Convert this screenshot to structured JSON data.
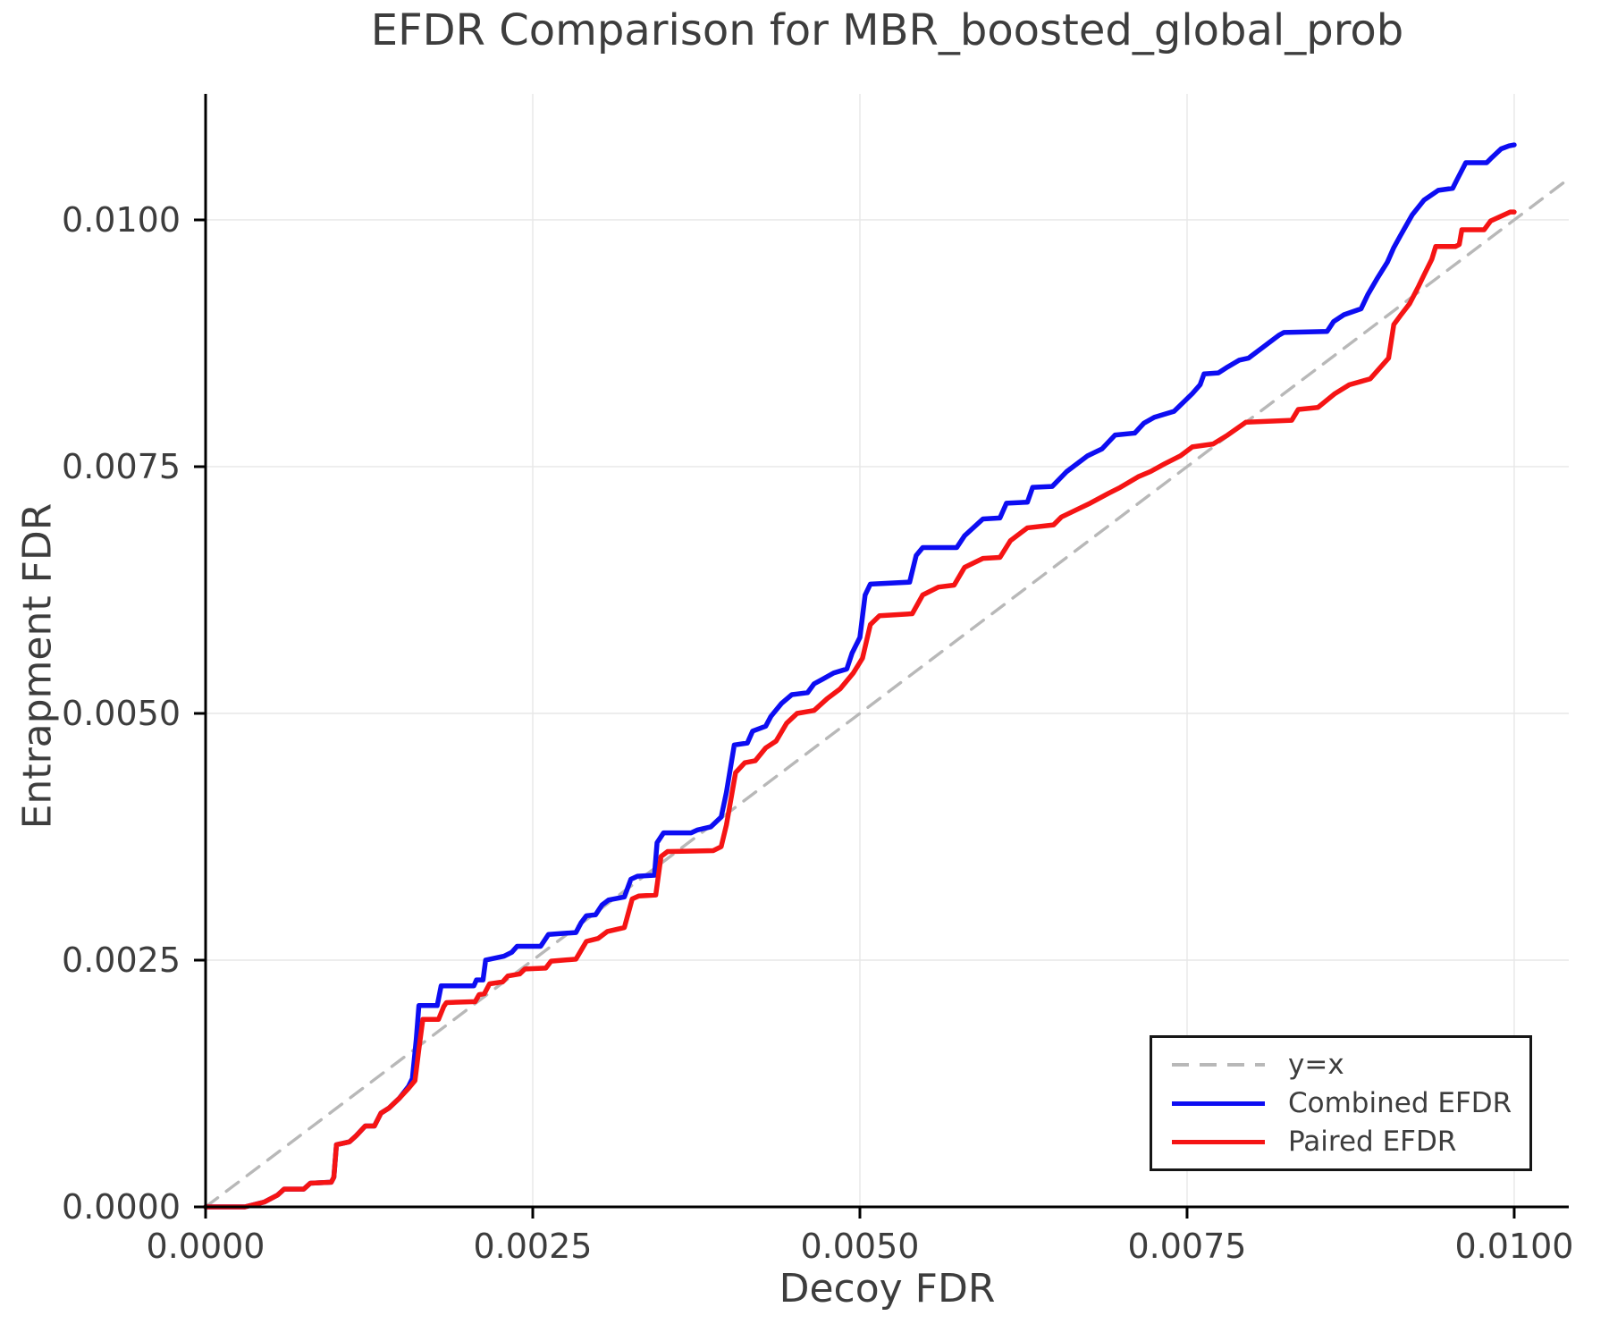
{
  "title": "EFDR Comparison for MBR_boosted_global_prob",
  "colors": {
    "combined_efdr": "#0d0df2",
    "paired_efdr": "#f51414",
    "identity_line": "#b8b8b8",
    "grid": "#e7e7e7",
    "spine": "#000000",
    "text": "#3d3d3d"
  },
  "legend": {
    "entries": [
      {
        "label": "y=x"
      },
      {
        "label": "Combined EFDR"
      },
      {
        "label": "Paired EFDR"
      }
    ]
  },
  "chart_data": {
    "type": "line",
    "title": "EFDR Comparison for MBR_boosted_global_prob",
    "xlabel": "Decoy FDR",
    "ylabel": "Entrapment FDR",
    "xlim": [
      0,
      0.010417
    ],
    "ylim": [
      0,
      0.011277
    ],
    "grid": true,
    "legend_position": "lower right",
    "x_ticks": [
      {
        "v": 0.0,
        "label": "0.0000"
      },
      {
        "v": 0.0025,
        "label": "0.0025"
      },
      {
        "v": 0.005,
        "label": "0.0050"
      },
      {
        "v": 0.0075,
        "label": "0.0075"
      },
      {
        "v": 0.01,
        "label": "0.0100"
      }
    ],
    "y_ticks": [
      {
        "v": 0.0,
        "label": "0.0000"
      },
      {
        "v": 0.0025,
        "label": "0.0025"
      },
      {
        "v": 0.005,
        "label": "0.0050"
      },
      {
        "v": 0.0075,
        "label": "0.0075"
      },
      {
        "v": 0.01,
        "label": "0.0100"
      }
    ],
    "series": [
      {
        "name": "y=x",
        "color": "#b8b8b8",
        "style": "dashed",
        "width": 3.4,
        "dash": "17 12",
        "points": [
          [
            0,
            0
          ],
          [
            0.010417,
            0.010417
          ]
        ]
      },
      {
        "name": "Combined EFDR",
        "color": "#0d0df2",
        "style": "solid",
        "width": 5.5,
        "points": [
          [
            0,
            0
          ],
          [
            0.0003,
            0
          ],
          [
            0.00045,
            5e-05
          ],
          [
            0.00055,
            0.00012
          ],
          [
            0.0006,
            0.00018
          ],
          [
            0.00075,
            0.00018
          ],
          [
            0.0008,
            0.00024
          ],
          [
            0.00096,
            0.00025
          ],
          [
            0.00098,
            0.0003
          ],
          [
            0.001,
            0.00063
          ],
          [
            0.0011,
            0.00066
          ],
          [
            0.00115,
            0.00072
          ],
          [
            0.00122,
            0.00082
          ],
          [
            0.00129,
            0.00082
          ],
          [
            0.00134,
            0.00095
          ],
          [
            0.0014,
            0.001
          ],
          [
            0.00148,
            0.0011
          ],
          [
            0.00155,
            0.00122
          ],
          [
            0.00158,
            0.0013
          ],
          [
            0.00161,
            0.0017
          ],
          [
            0.00163,
            0.00204
          ],
          [
            0.00177,
            0.00204
          ],
          [
            0.0018,
            0.00224
          ],
          [
            0.00205,
            0.00224
          ],
          [
            0.00207,
            0.0023
          ],
          [
            0.00212,
            0.0023
          ],
          [
            0.00214,
            0.0025
          ],
          [
            0.00228,
            0.00254
          ],
          [
            0.00234,
            0.00258
          ],
          [
            0.00238,
            0.00264
          ],
          [
            0.00256,
            0.00264
          ],
          [
            0.00262,
            0.00276
          ],
          [
            0.00283,
            0.00278
          ],
          [
            0.00287,
            0.00288
          ],
          [
            0.00291,
            0.00295
          ],
          [
            0.00298,
            0.00296
          ],
          [
            0.00303,
            0.00306
          ],
          [
            0.00308,
            0.00311
          ],
          [
            0.0032,
            0.00314
          ],
          [
            0.00325,
            0.00332
          ],
          [
            0.0033,
            0.00335
          ],
          [
            0.00343,
            0.00336
          ],
          [
            0.00345,
            0.00369
          ],
          [
            0.0035,
            0.00379
          ],
          [
            0.00371,
            0.00379
          ],
          [
            0.00376,
            0.00382
          ],
          [
            0.00386,
            0.00385
          ],
          [
            0.00394,
            0.00395
          ],
          [
            0.00398,
            0.0042
          ],
          [
            0.00404,
            0.00468
          ],
          [
            0.00414,
            0.0047
          ],
          [
            0.00418,
            0.00482
          ],
          [
            0.00428,
            0.00487
          ],
          [
            0.00432,
            0.00497
          ],
          [
            0.0044,
            0.0051
          ],
          [
            0.00448,
            0.00519
          ],
          [
            0.0046,
            0.00521
          ],
          [
            0.00465,
            0.0053
          ],
          [
            0.00472,
            0.00535
          ],
          [
            0.0048,
            0.00541
          ],
          [
            0.0049,
            0.00545
          ],
          [
            0.00494,
            0.00561
          ],
          [
            0.005,
            0.00577
          ],
          [
            0.00504,
            0.0062
          ],
          [
            0.00508,
            0.00631
          ],
          [
            0.00538,
            0.00633
          ],
          [
            0.00543,
            0.0066
          ],
          [
            0.00548,
            0.00668
          ],
          [
            0.00574,
            0.00668
          ],
          [
            0.0058,
            0.0068
          ],
          [
            0.00594,
            0.00697
          ],
          [
            0.00607,
            0.00698
          ],
          [
            0.00612,
            0.00713
          ],
          [
            0.00628,
            0.00714
          ],
          [
            0.00632,
            0.00729
          ],
          [
            0.00647,
            0.0073
          ],
          [
            0.00658,
            0.00745
          ],
          [
            0.00674,
            0.00761
          ],
          [
            0.00685,
            0.00768
          ],
          [
            0.00695,
            0.00782
          ],
          [
            0.0071,
            0.00784
          ],
          [
            0.00717,
            0.00794
          ],
          [
            0.00725,
            0.008
          ],
          [
            0.0074,
            0.00806
          ],
          [
            0.00754,
            0.00824
          ],
          [
            0.0076,
            0.00833
          ],
          [
            0.00763,
            0.00844
          ],
          [
            0.00774,
            0.00845
          ],
          [
            0.00781,
            0.00851
          ],
          [
            0.0079,
            0.00858
          ],
          [
            0.00797,
            0.0086
          ],
          [
            0.00808,
            0.00871
          ],
          [
            0.0082,
            0.00883
          ],
          [
            0.00824,
            0.00886
          ],
          [
            0.00857,
            0.00887
          ],
          [
            0.00862,
            0.00897
          ],
          [
            0.0087,
            0.00904
          ],
          [
            0.00883,
            0.0091
          ],
          [
            0.00888,
            0.00924
          ],
          [
            0.00895,
            0.0094
          ],
          [
            0.00903,
            0.00957
          ],
          [
            0.00908,
            0.00972
          ],
          [
            0.00913,
            0.00984
          ],
          [
            0.00922,
            0.01005
          ],
          [
            0.00931,
            0.0102
          ],
          [
            0.00942,
            0.0103
          ],
          [
            0.00953,
            0.01032
          ],
          [
            0.00956,
            0.0104
          ],
          [
            0.00963,
            0.01058
          ],
          [
            0.00979,
            0.01058
          ],
          [
            0.00982,
            0.01062
          ],
          [
            0.0099,
            0.01072
          ],
          [
            0.00996,
            0.01075
          ],
          [
            0.01,
            0.01076
          ]
        ]
      },
      {
        "name": "Paired EFDR",
        "color": "#f51414",
        "style": "solid",
        "width": 5.5,
        "points": [
          [
            0,
            0
          ],
          [
            0.0003,
            0
          ],
          [
            0.00045,
            5e-05
          ],
          [
            0.00055,
            0.00012
          ],
          [
            0.0006,
            0.00018
          ],
          [
            0.00075,
            0.00018
          ],
          [
            0.0008,
            0.00024
          ],
          [
            0.00096,
            0.00025
          ],
          [
            0.00098,
            0.0003
          ],
          [
            0.001,
            0.00063
          ],
          [
            0.0011,
            0.00066
          ],
          [
            0.00115,
            0.00072
          ],
          [
            0.00122,
            0.00082
          ],
          [
            0.00129,
            0.00082
          ],
          [
            0.00134,
            0.00095
          ],
          [
            0.0014,
            0.001
          ],
          [
            0.00148,
            0.0011
          ],
          [
            0.00155,
            0.0012
          ],
          [
            0.0016,
            0.00128
          ],
          [
            0.00163,
            0.0016
          ],
          [
            0.00166,
            0.0019
          ],
          [
            0.00178,
            0.0019
          ],
          [
            0.00182,
            0.00203
          ],
          [
            0.00184,
            0.00207
          ],
          [
            0.00206,
            0.00208
          ],
          [
            0.00209,
            0.00215
          ],
          [
            0.00213,
            0.00216
          ],
          [
            0.00217,
            0.00226
          ],
          [
            0.00227,
            0.00228
          ],
          [
            0.00231,
            0.00234
          ],
          [
            0.0024,
            0.00236
          ],
          [
            0.00244,
            0.00241
          ],
          [
            0.0026,
            0.00242
          ],
          [
            0.00264,
            0.00249
          ],
          [
            0.00283,
            0.00251
          ],
          [
            0.00287,
            0.0026
          ],
          [
            0.00291,
            0.00269
          ],
          [
            0.003,
            0.00272
          ],
          [
            0.00307,
            0.00279
          ],
          [
            0.0032,
            0.00283
          ],
          [
            0.00326,
            0.00312
          ],
          [
            0.00331,
            0.00315
          ],
          [
            0.00344,
            0.00316
          ],
          [
            0.00348,
            0.00355
          ],
          [
            0.00353,
            0.0036
          ],
          [
            0.00388,
            0.00361
          ],
          [
            0.00394,
            0.00365
          ],
          [
            0.00398,
            0.00387
          ],
          [
            0.00405,
            0.0044
          ],
          [
            0.00412,
            0.0045
          ],
          [
            0.0042,
            0.00452
          ],
          [
            0.00428,
            0.00465
          ],
          [
            0.00436,
            0.00472
          ],
          [
            0.00444,
            0.0049
          ],
          [
            0.00452,
            0.005
          ],
          [
            0.00465,
            0.00503
          ],
          [
            0.00475,
            0.00515
          ],
          [
            0.00485,
            0.00525
          ],
          [
            0.00495,
            0.00541
          ],
          [
            0.00502,
            0.00556
          ],
          [
            0.00508,
            0.0059
          ],
          [
            0.00515,
            0.00599
          ],
          [
            0.0054,
            0.00601
          ],
          [
            0.00548,
            0.0062
          ],
          [
            0.0056,
            0.00628
          ],
          [
            0.00572,
            0.0063
          ],
          [
            0.0058,
            0.00648
          ],
          [
            0.00594,
            0.00657
          ],
          [
            0.00607,
            0.00658
          ],
          [
            0.00615,
            0.00675
          ],
          [
            0.00628,
            0.00688
          ],
          [
            0.00648,
            0.00691
          ],
          [
            0.00654,
            0.00699
          ],
          [
            0.00665,
            0.00706
          ],
          [
            0.00676,
            0.00713
          ],
          [
            0.0069,
            0.00723
          ],
          [
            0.00699,
            0.00729
          ],
          [
            0.00713,
            0.0074
          ],
          [
            0.00722,
            0.00745
          ],
          [
            0.00733,
            0.00753
          ],
          [
            0.00745,
            0.00761
          ],
          [
            0.00754,
            0.0077
          ],
          [
            0.0077,
            0.00773
          ],
          [
            0.00781,
            0.00782
          ],
          [
            0.00795,
            0.00795
          ],
          [
            0.0083,
            0.00797
          ],
          [
            0.00835,
            0.00808
          ],
          [
            0.0085,
            0.0081
          ],
          [
            0.00863,
            0.00824
          ],
          [
            0.00874,
            0.00833
          ],
          [
            0.0089,
            0.00839
          ],
          [
            0.00904,
            0.0086
          ],
          [
            0.00908,
            0.00894
          ],
          [
            0.00913,
            0.00903
          ],
          [
            0.0092,
            0.00915
          ],
          [
            0.00927,
            0.00933
          ],
          [
            0.00931,
            0.00944
          ],
          [
            0.00937,
            0.0096
          ],
          [
            0.0094,
            0.00973
          ],
          [
            0.00955,
            0.00973
          ],
          [
            0.00958,
            0.00975
          ],
          [
            0.0096,
            0.0099
          ],
          [
            0.00977,
            0.0099
          ],
          [
            0.00982,
            0.00999
          ],
          [
            0.00997,
            0.01008
          ],
          [
            0.01,
            0.01008
          ]
        ]
      }
    ]
  }
}
